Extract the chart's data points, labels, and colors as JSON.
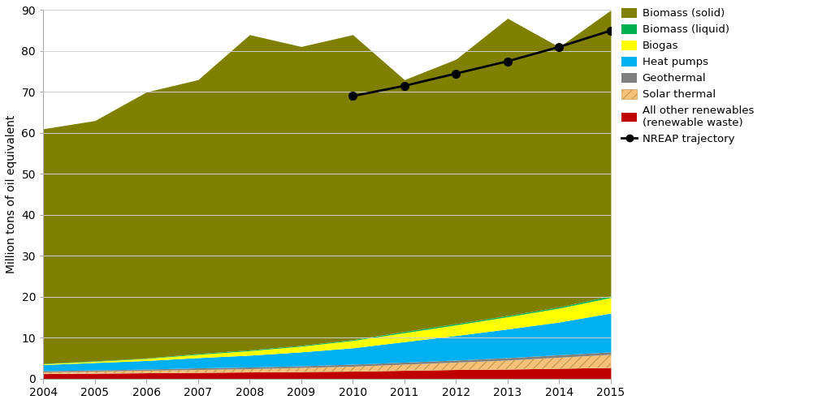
{
  "years": [
    2004,
    2005,
    2006,
    2007,
    2008,
    2009,
    2010,
    2011,
    2012,
    2013,
    2014,
    2015
  ],
  "all_other_renewables": [
    1.2,
    1.3,
    1.4,
    1.5,
    1.6,
    1.7,
    1.8,
    2.0,
    2.2,
    2.3,
    2.5,
    2.7
  ],
  "solar_thermal": [
    0.4,
    0.5,
    0.6,
    0.7,
    0.8,
    1.0,
    1.2,
    1.5,
    1.8,
    2.2,
    2.7,
    3.2
  ],
  "geothermal": [
    0.3,
    0.3,
    0.3,
    0.4,
    0.4,
    0.4,
    0.5,
    0.5,
    0.5,
    0.6,
    0.6,
    0.6
  ],
  "heat_pumps": [
    1.5,
    1.8,
    2.1,
    2.5,
    2.9,
    3.4,
    4.0,
    5.0,
    6.0,
    7.0,
    8.0,
    9.5
  ],
  "biogas": [
    0.2,
    0.3,
    0.5,
    0.8,
    1.1,
    1.4,
    1.8,
    2.2,
    2.6,
    3.0,
    3.4,
    3.8
  ],
  "biomass_liquid": [
    0.1,
    0.1,
    0.1,
    0.2,
    0.2,
    0.2,
    0.2,
    0.3,
    0.3,
    0.3,
    0.3,
    0.4
  ],
  "biomass_solid": [
    57.3,
    58.7,
    65.0,
    66.9,
    77.0,
    73.0,
    74.5,
    61.5,
    64.6,
    72.6,
    63.5,
    69.8
  ],
  "nreap": [
    null,
    null,
    null,
    null,
    null,
    null,
    69.0,
    71.5,
    74.5,
    77.5,
    81.0,
    85.0
  ],
  "colors": {
    "all_other_renewables": "#c00000",
    "solar_thermal": "#f5c07a",
    "geothermal": "#808080",
    "heat_pumps": "#00b0f0",
    "biogas": "#ffff00",
    "biomass_liquid": "#00b050",
    "biomass_solid": "#808000"
  },
  "solar_thermal_hatch": "///",
  "legend_labels": [
    "Biomass (solid)",
    "Biomass (liquid)",
    "Biogas",
    "Heat pumps",
    "Geothermal",
    "Solar thermal",
    "All other renewables\n(renewable waste)",
    "NREAP trajectory"
  ],
  "ylabel": "Million tons of oil equivalent",
  "ylim": [
    0,
    90
  ],
  "yticks": [
    0,
    10,
    20,
    30,
    40,
    50,
    60,
    70,
    80,
    90
  ],
  "background_color": "#ffffff",
  "grid_color": "#ffffff",
  "nreap_line_color": "#000000"
}
